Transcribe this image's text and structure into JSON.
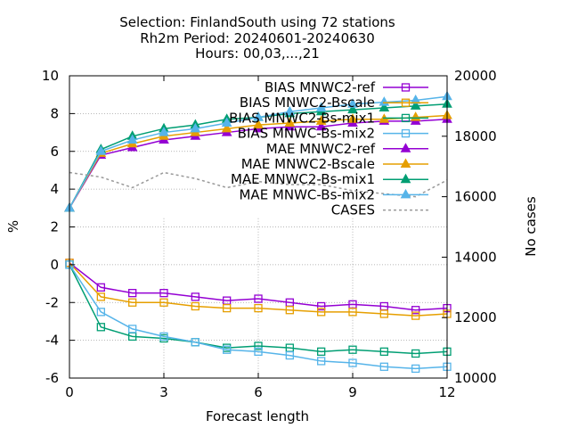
{
  "chart_data": {
    "type": "line",
    "title_lines": [
      "Selection: FinlandSouth using     72 stations",
      "Rh2m   Period: 20240601-20240630",
      "Hours: 00,03,...,21"
    ],
    "xlabel": "Forecast length",
    "ylabel": "%",
    "y2label": "No cases",
    "xlim": [
      0,
      12
    ],
    "ylim": [
      -6,
      10
    ],
    "y2lim": [
      10000,
      20000
    ],
    "xticks": [
      0,
      3,
      6,
      9,
      12
    ],
    "yticks": [
      -6,
      -4,
      -2,
      0,
      2,
      4,
      6,
      8,
      10
    ],
    "y2ticks": [
      10000,
      12000,
      14000,
      16000,
      18000,
      20000
    ],
    "grid": true,
    "legend_position": "top-right",
    "x": [
      0,
      1,
      2,
      3,
      4,
      5,
      6,
      7,
      8,
      9,
      10,
      11,
      12
    ],
    "series": [
      {
        "name": "BIAS MNWC2-ref",
        "color": "#9400d3",
        "marker": "open-square",
        "axis": "y",
        "values": [
          0.1,
          -1.2,
          -1.5,
          -1.5,
          -1.7,
          -1.9,
          -1.8,
          -2.0,
          -2.2,
          -2.1,
          -2.2,
          -2.4,
          -2.3
        ]
      },
      {
        "name": "BIAS MNWC2-Bscale",
        "color": "#e69f00",
        "marker": "open-square",
        "axis": "y",
        "values": [
          0.1,
          -1.7,
          -2.0,
          -2.0,
          -2.2,
          -2.3,
          -2.3,
          -2.4,
          -2.5,
          -2.5,
          -2.6,
          -2.7,
          -2.6
        ]
      },
      {
        "name": "BIAS MNWC2-Bs-mix1",
        "color": "#009e73",
        "marker": "open-square",
        "axis": "y",
        "values": [
          0.0,
          -3.3,
          -3.8,
          -3.9,
          -4.1,
          -4.4,
          -4.3,
          -4.4,
          -4.6,
          -4.5,
          -4.6,
          -4.7,
          -4.6
        ]
      },
      {
        "name": "BIAS MNWC-Bs-mix2",
        "color": "#56b4e9",
        "marker": "open-square",
        "axis": "y",
        "values": [
          0.0,
          -2.5,
          -3.4,
          -3.8,
          -4.1,
          -4.5,
          -4.6,
          -4.8,
          -5.1,
          -5.2,
          -5.4,
          -5.5,
          -5.4
        ]
      },
      {
        "name": "MAE MNWC2-ref",
        "color": "#9400d3",
        "marker": "filled-triangle",
        "axis": "y",
        "values": [
          3.0,
          5.8,
          6.2,
          6.6,
          6.8,
          7.0,
          7.2,
          7.3,
          7.3,
          7.5,
          7.6,
          7.6,
          7.7
        ]
      },
      {
        "name": "MAE MNWC2-Bscale",
        "color": "#e69f00",
        "marker": "filled-triangle",
        "axis": "y",
        "values": [
          3.0,
          5.9,
          6.4,
          6.8,
          7.0,
          7.2,
          7.4,
          7.5,
          7.6,
          7.7,
          7.7,
          7.8,
          7.9
        ]
      },
      {
        "name": "MAE MNWC2-Bs-mix1",
        "color": "#009e73",
        "marker": "filled-triangle",
        "axis": "y",
        "values": [
          3.0,
          6.1,
          6.8,
          7.2,
          7.4,
          7.7,
          7.8,
          8.0,
          8.1,
          8.2,
          8.3,
          8.4,
          8.5
        ]
      },
      {
        "name": "MAE MNWC-Bs-mix2",
        "color": "#56b4e9",
        "marker": "filled-triangle",
        "axis": "y",
        "values": [
          3.0,
          6.0,
          6.6,
          7.0,
          7.2,
          7.5,
          7.8,
          8.1,
          8.3,
          8.5,
          8.6,
          8.7,
          8.9
        ]
      },
      {
        "name": "CASES",
        "color": "#999999",
        "marker": "none",
        "dash": true,
        "axis": "y2",
        "values": [
          16800,
          16650,
          16300,
          16800,
          16600,
          16300,
          16500,
          16400,
          16400,
          16200,
          16100,
          16000,
          16550
        ]
      }
    ]
  }
}
